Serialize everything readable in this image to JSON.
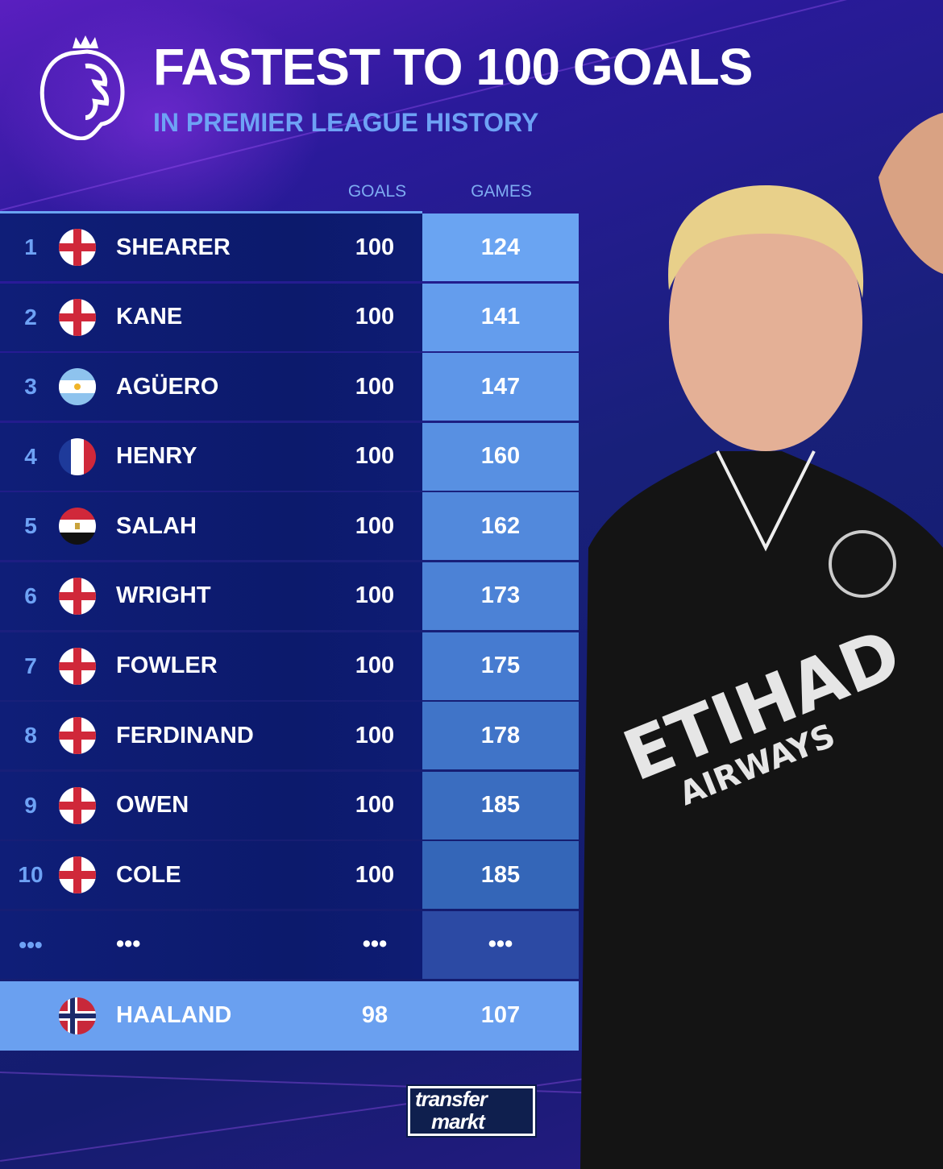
{
  "header": {
    "title": "FASTEST TO 100 GOALS",
    "subtitle": "IN PREMIER LEAGUE HISTORY"
  },
  "columns": {
    "goals": "GOALS",
    "games": "GAMES"
  },
  "rows": [
    {
      "rank": "1",
      "flag": "england",
      "name": "SHEARER",
      "goals": "100",
      "games": "124"
    },
    {
      "rank": "2",
      "flag": "england",
      "name": "KANE",
      "goals": "100",
      "games": "141"
    },
    {
      "rank": "3",
      "flag": "argentina",
      "name": "AGÜERO",
      "goals": "100",
      "games": "147"
    },
    {
      "rank": "4",
      "flag": "france",
      "name": "HENRY",
      "goals": "100",
      "games": "160"
    },
    {
      "rank": "5",
      "flag": "egypt",
      "name": "SALAH",
      "goals": "100",
      "games": "162"
    },
    {
      "rank": "6",
      "flag": "england",
      "name": "WRIGHT",
      "goals": "100",
      "games": "173"
    },
    {
      "rank": "7",
      "flag": "england",
      "name": "FOWLER",
      "goals": "100",
      "games": "175"
    },
    {
      "rank": "8",
      "flag": "england",
      "name": "FERDINAND",
      "goals": "100",
      "games": "178"
    },
    {
      "rank": "9",
      "flag": "england",
      "name": "OWEN",
      "goals": "100",
      "games": "185"
    },
    {
      "rank": "10",
      "flag": "england",
      "name": "COLE",
      "goals": "100",
      "games": "185"
    },
    {
      "rank": "•••",
      "flag": "",
      "name": "•••",
      "goals": "•••",
      "games": "•••"
    }
  ],
  "highlight": {
    "rank": "",
    "flag": "norway",
    "name": "HAALAND",
    "goals": "98",
    "games": "107"
  },
  "logos": {
    "league": "Premier League lion logo",
    "brand_line1": "transfer",
    "brand_line2": "markt"
  },
  "colors": {
    "games_top": "#6aa4f2",
    "games_bottom": "#2c4aa4",
    "row_bg": "#0f1e78",
    "highlight": "#6aa0f0",
    "subtitle": "#6ea2f5"
  }
}
